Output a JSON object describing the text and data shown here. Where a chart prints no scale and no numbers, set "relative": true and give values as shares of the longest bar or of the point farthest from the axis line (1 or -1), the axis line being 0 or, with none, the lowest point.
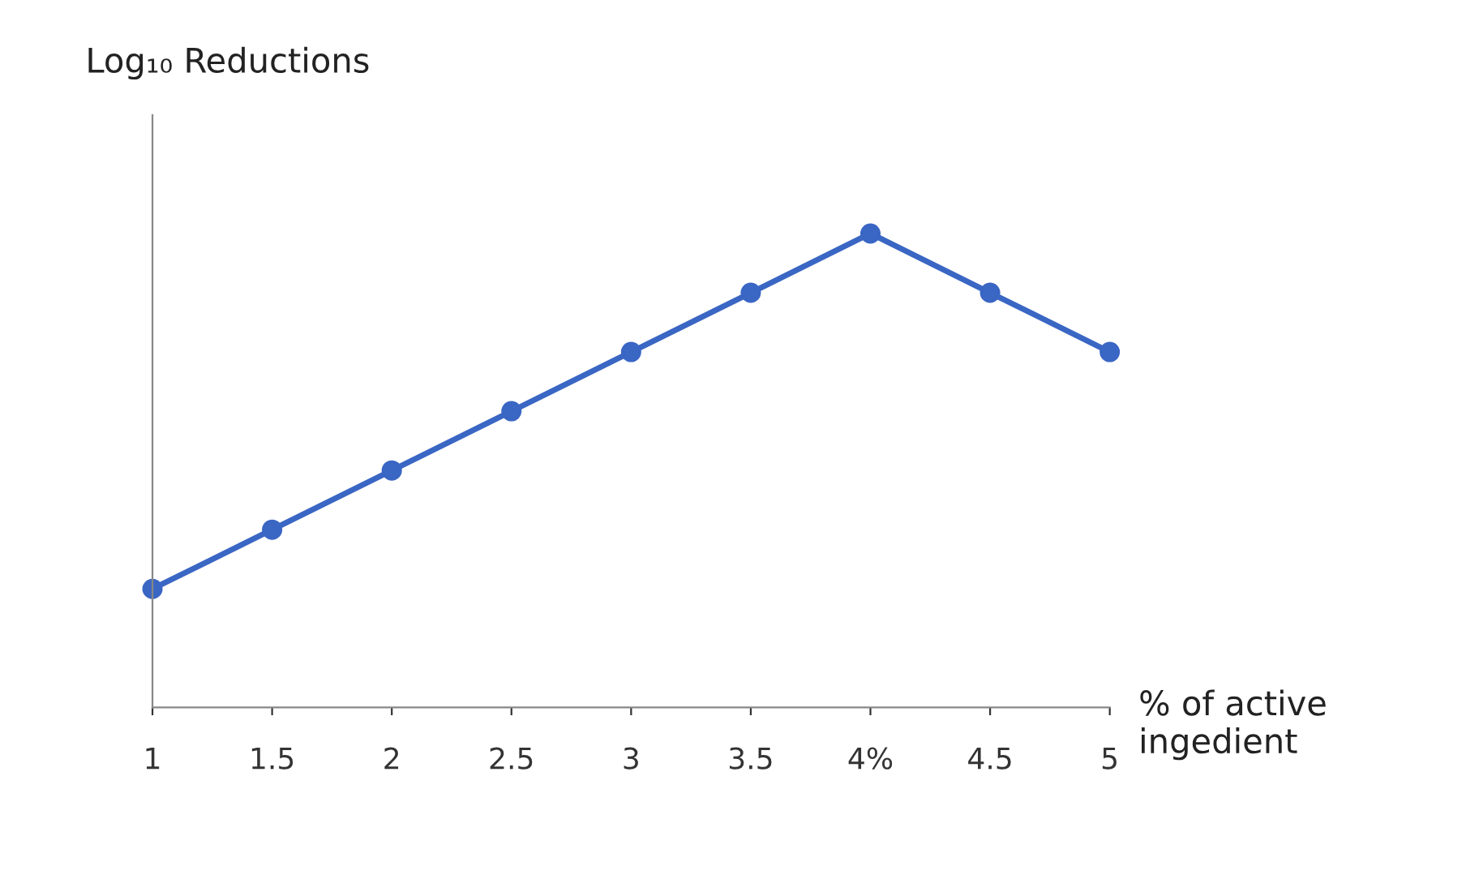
{
  "chart_data": {
    "type": "line",
    "ylabel": "Log₁₀ Reductions",
    "xlabel": "% of active ingedient",
    "categories": [
      "1",
      "1.5",
      "2",
      "2.5",
      "3",
      "3.5",
      "4%",
      "4.5",
      "5"
    ],
    "relative": true,
    "marker": "circle",
    "line_style": "solid",
    "grid": false,
    "legend": false,
    "series": [
      {
        "color": "#3a66c4",
        "values": [
          0.25,
          0.375,
          0.5,
          0.625,
          0.75,
          0.875,
          1,
          0.875,
          0.75
        ]
      }
    ]
  }
}
